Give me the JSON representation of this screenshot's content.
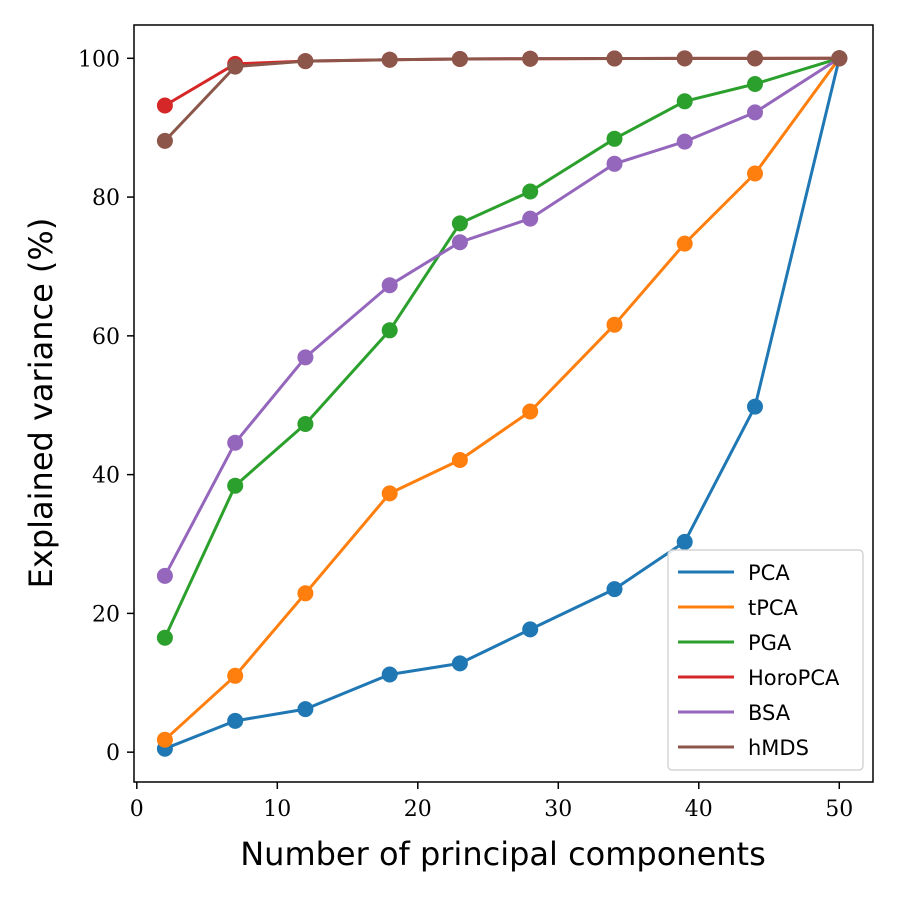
{
  "chart_data": {
    "type": "line",
    "title": "",
    "xlabel": "Number of principal components",
    "ylabel": "Explained variance (%)",
    "xlim": [
      -0.2,
      52.4
    ],
    "ylim": [
      -4.3,
      104.8
    ],
    "xticks": [
      0,
      10,
      20,
      30,
      40,
      50
    ],
    "yticks": [
      0,
      20,
      40,
      60,
      80,
      100
    ],
    "grid": false,
    "legend_position": "bottom-right",
    "series": [
      {
        "name": "PCA",
        "color": "#1f77b4",
        "x": [
          2,
          7,
          12,
          18,
          23,
          28,
          34,
          39,
          44,
          50
        ],
        "y": [
          0.5,
          4.5,
          6.2,
          11.2,
          12.8,
          17.7,
          23.5,
          30.3,
          49.8,
          100
        ]
      },
      {
        "name": "tPCA",
        "color": "#ff7f0e",
        "x": [
          2,
          7,
          12,
          18,
          23,
          28,
          34,
          39,
          44,
          50
        ],
        "y": [
          1.8,
          11.0,
          22.9,
          37.3,
          42.1,
          49.1,
          61.6,
          73.3,
          83.4,
          100
        ]
      },
      {
        "name": "PGA",
        "color": "#2ca02c",
        "x": [
          2,
          7,
          12,
          18,
          23,
          28,
          34,
          39,
          44,
          50
        ],
        "y": [
          16.5,
          38.4,
          47.3,
          60.8,
          76.2,
          80.8,
          88.4,
          93.8,
          96.3,
          100
        ]
      },
      {
        "name": "HoroPCA",
        "color": "#d62728",
        "x": [
          2,
          7,
          12,
          18,
          23,
          28,
          34,
          39,
          44,
          50
        ],
        "y": [
          93.2,
          99.2,
          99.6,
          99.8,
          99.9,
          99.95,
          99.97,
          99.98,
          99.99,
          100
        ]
      },
      {
        "name": "BSA",
        "color": "#9467bd",
        "x": [
          2,
          7,
          12,
          18,
          23,
          28,
          34,
          39,
          44,
          50
        ],
        "y": [
          25.4,
          44.6,
          56.9,
          67.3,
          73.5,
          76.9,
          84.8,
          88.0,
          92.2,
          100
        ]
      },
      {
        "name": "hMDS",
        "color": "#8c564b",
        "x": [
          2,
          7,
          12,
          18,
          23,
          28,
          34,
          39,
          44,
          50
        ],
        "y": [
          88.1,
          98.8,
          99.6,
          99.8,
          99.9,
          99.95,
          99.97,
          99.98,
          99.99,
          100
        ]
      }
    ]
  }
}
